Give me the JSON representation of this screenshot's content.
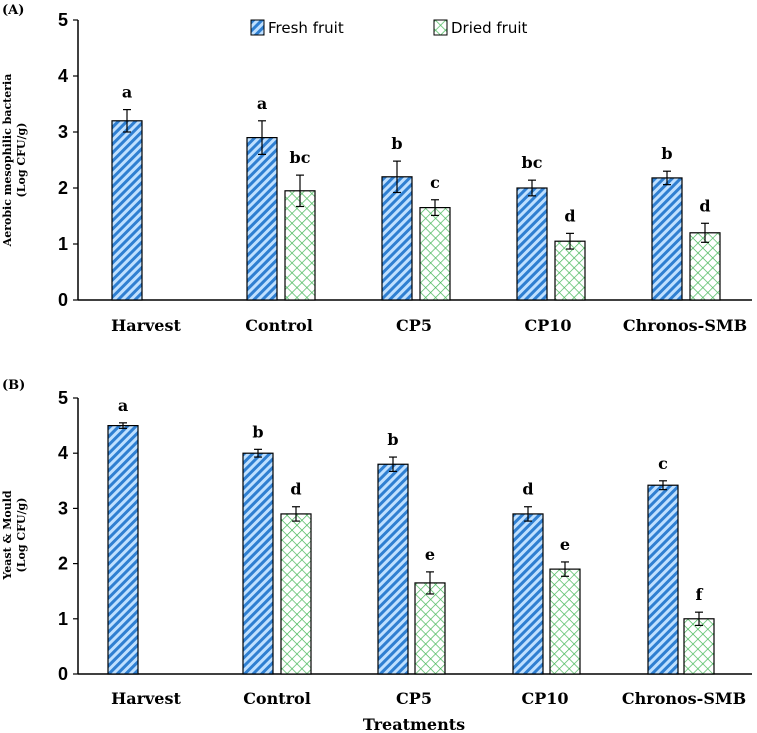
{
  "legend": {
    "fresh": "Fresh fruit",
    "dried": "Dried fruit"
  },
  "colors": {
    "fresh": "#2f7fd1",
    "dried": "#47b85a",
    "axis": "#000000"
  },
  "xlabel": "Treatments",
  "chart_data": [
    {
      "type": "bar",
      "panel": "(A)",
      "ylabel_line1": "Aerobic mesophilic bacteria",
      "ylabel_line2": "(Log CFU/g)",
      "ylim": [
        0,
        5
      ],
      "yticks": [
        0,
        1,
        2,
        3,
        4,
        5
      ],
      "categories": [
        "Harvest",
        "Control",
        "CP5",
        "CP10",
        "Chronos-SMB"
      ],
      "series": [
        {
          "name": "Fresh fruit",
          "values": [
            3.2,
            2.9,
            2.2,
            2.0,
            2.18
          ],
          "errors": [
            0.2,
            0.3,
            0.28,
            0.14,
            0.12
          ],
          "letters": [
            "a",
            "a",
            "b",
            "bc",
            "b"
          ]
        },
        {
          "name": "Dried fruit",
          "values": [
            null,
            1.95,
            1.65,
            1.05,
            1.2
          ],
          "errors": [
            null,
            0.28,
            0.14,
            0.14,
            0.17
          ],
          "letters": [
            null,
            "bc",
            "c",
            "d",
            "d"
          ]
        }
      ]
    },
    {
      "type": "bar",
      "panel": "(B)",
      "ylabel_line1": "Yeast & Mould",
      "ylabel_line2": "(Log CFU/g)",
      "ylim": [
        0,
        5
      ],
      "yticks": [
        0,
        1,
        2,
        3,
        4,
        5
      ],
      "categories": [
        "Harvest",
        "Control",
        "CP5",
        "CP10",
        "Chronos-SMB"
      ],
      "series": [
        {
          "name": "Fresh fruit",
          "values": [
            4.5,
            4.0,
            3.8,
            2.9,
            3.42
          ],
          "errors": [
            0.05,
            0.07,
            0.13,
            0.13,
            0.08
          ],
          "letters": [
            "a",
            "b",
            "b",
            "d",
            "c"
          ]
        },
        {
          "name": "Dried fruit",
          "values": [
            null,
            2.9,
            1.65,
            1.9,
            1.0
          ],
          "errors": [
            null,
            0.13,
            0.2,
            0.13,
            0.12
          ],
          "letters": [
            null,
            "d",
            "e",
            "e",
            "f"
          ]
        }
      ]
    }
  ]
}
